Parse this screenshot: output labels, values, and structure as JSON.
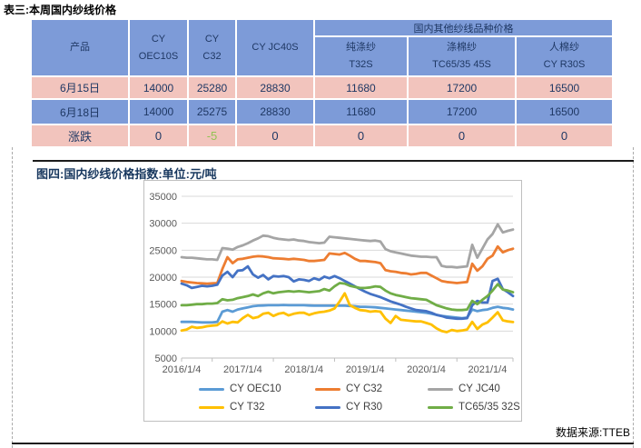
{
  "colors": {
    "table-blue": "#7d9bd8",
    "table-pink": "#f2c4bd",
    "table-text": "#1f3864",
    "change-green": "#92c353",
    "title-navy": "#17375e",
    "grid": "#d9d9d9",
    "axis-line": "#bfbfbf",
    "axis-text": "#595959"
  },
  "table_section": {
    "title": "表三:本周国内纱线价格",
    "header": {
      "product": "产品",
      "col_oec10s_l1": "CY",
      "col_oec10s_l2": "OEC10S",
      "col_c32_l1": "CY",
      "col_c32_l2": "C32",
      "col_jc40s": "CY JC40S",
      "group": "国内其他纱线品种价格",
      "sub_t32s_l1": "纯涤纱",
      "sub_t32s_l2": "T32S",
      "sub_tc_l1": "涤棉纱",
      "sub_tc_l2": "TC65/35 45S",
      "sub_r30s_l1": "人棉纱",
      "sub_r30s_l2": "CY R30S"
    },
    "rows": [
      {
        "label": "6月15日",
        "values": [
          "14000",
          "25280",
          "28830",
          "11680",
          "17200",
          "16500"
        ]
      },
      {
        "label": "6月18日",
        "values": [
          "14000",
          "25275",
          "28830",
          "11680",
          "17200",
          "16500"
        ]
      },
      {
        "label": "涨跌",
        "values": [
          "0",
          "-5",
          "0",
          "0",
          "0",
          "0"
        ]
      }
    ]
  },
  "figure_section": {
    "title": "图四:国内纱线价格指数:单位:元/吨",
    "source": "数据来源:TTEB"
  },
  "chart_data": {
    "type": "line",
    "title": "图四:国内纱线价格指数:单位:元/吨",
    "ylabel": "元/吨",
    "ylim": [
      5000,
      35000
    ],
    "yticks": [
      5000,
      10000,
      15000,
      20000,
      25000,
      30000,
      35000
    ],
    "xticks": [
      "2016/1/4",
      "2017/1/4",
      "2018/1/4",
      "2019/1/4",
      "2020/1/4",
      "2021/1/4"
    ],
    "x_start": "2016-01",
    "x_end": "2021-06",
    "x_interval": "monthly",
    "grid": "horizontal",
    "legend_position": "bottom",
    "series": [
      {
        "name": "CY OEC10",
        "color": "#5b9bd5",
        "values": [
          11700,
          11700,
          11700,
          11650,
          11600,
          11600,
          11600,
          11700,
          13600,
          13900,
          13600,
          14000,
          14200,
          14400,
          14600,
          14700,
          14750,
          14800,
          14800,
          14800,
          14850,
          14800,
          14800,
          14800,
          14800,
          14750,
          14700,
          14700,
          14700,
          14700,
          14700,
          14700,
          14700,
          14650,
          14600,
          14500,
          14500,
          14450,
          14400,
          14300,
          14200,
          14100,
          14000,
          13900,
          13800,
          13700,
          13600,
          13500,
          13400,
          13200,
          13000,
          12800,
          12700,
          12600,
          12500,
          12400,
          12500,
          14000,
          13700,
          13900,
          14000,
          14300,
          14500,
          14300,
          14200,
          14000
        ]
      },
      {
        "name": "CY C32",
        "color": "#ed7d31",
        "values": [
          19300,
          19100,
          19000,
          18900,
          18850,
          18800,
          18850,
          18900,
          21500,
          23700,
          22600,
          23300,
          23400,
          23600,
          23800,
          23900,
          23850,
          23700,
          23500,
          23450,
          23400,
          23300,
          23400,
          23300,
          23200,
          23000,
          23000,
          23100,
          23200,
          24400,
          24300,
          24200,
          24500,
          24000,
          23400,
          23000,
          23000,
          22900,
          22800,
          22600,
          21300,
          21100,
          21000,
          20800,
          20700,
          20500,
          20600,
          20800,
          20800,
          20300,
          19800,
          19300,
          19100,
          19000,
          18900,
          19000,
          19100,
          22500,
          21200,
          22000,
          23400,
          24000,
          25700,
          24600,
          25000,
          25275
        ]
      },
      {
        "name": "CY JC40",
        "color": "#a5a5a5",
        "values": [
          23700,
          23600,
          23600,
          23500,
          23400,
          23300,
          23300,
          23200,
          25400,
          25300,
          25100,
          25600,
          25900,
          26300,
          26800,
          27200,
          27700,
          27600,
          27300,
          27100,
          27000,
          26900,
          27000,
          26800,
          26700,
          26500,
          26400,
          26300,
          26400,
          27500,
          27400,
          27300,
          27200,
          27100,
          27000,
          26900,
          26800,
          26700,
          26800,
          26600,
          25200,
          24800,
          24600,
          24400,
          24200,
          24000,
          23900,
          23800,
          23800,
          23700,
          23700,
          22100,
          21900,
          21900,
          21800,
          21900,
          22000,
          26000,
          23600,
          25300,
          27000,
          28000,
          29800,
          28300,
          28600,
          28830
        ]
      },
      {
        "name": "CY T32",
        "color": "#ffc000",
        "values": [
          10100,
          10300,
          10800,
          10600,
          10700,
          10900,
          11000,
          11100,
          11800,
          11400,
          11700,
          11600,
          12400,
          13000,
          12400,
          12600,
          13200,
          13400,
          12800,
          13200,
          13400,
          12900,
          13200,
          13400,
          13400,
          13000,
          13300,
          13500,
          13600,
          13800,
          14200,
          15500,
          17000,
          14800,
          14300,
          13900,
          13800,
          13600,
          13700,
          13600,
          12300,
          11500,
          12800,
          12100,
          12000,
          11900,
          11800,
          11800,
          11500,
          11200,
          10500,
          10000,
          9800,
          10200,
          10000,
          10100,
          10300,
          11700,
          10400,
          11200,
          11600,
          12500,
          13500,
          12000,
          11800,
          11680
        ]
      },
      {
        "name": "CY R30",
        "color": "#4472c4",
        "values": [
          18800,
          18500,
          18000,
          18200,
          18400,
          18300,
          18400,
          18600,
          20300,
          21000,
          20000,
          21200,
          21300,
          22000,
          20500,
          19900,
          20400,
          19600,
          20200,
          20100,
          20200,
          20000,
          19200,
          19600,
          19500,
          19300,
          19800,
          19500,
          20100,
          19800,
          20200,
          19800,
          19300,
          18800,
          18300,
          17800,
          17300,
          16900,
          16600,
          16300,
          15900,
          15500,
          15200,
          14900,
          14500,
          14200,
          13900,
          13800,
          13700,
          13400,
          13000,
          12800,
          12500,
          12400,
          12300,
          12300,
          12400,
          14800,
          15600,
          15300,
          15300,
          19300,
          19700,
          17800,
          17200,
          16500
        ]
      },
      {
        "name": "TC65/35 32S",
        "color": "#70ad47",
        "values": [
          14800,
          14800,
          14900,
          15000,
          15000,
          15100,
          15100,
          15200,
          15900,
          15700,
          15800,
          16100,
          16300,
          16500,
          16800,
          16500,
          17000,
          17300,
          17000,
          17200,
          17300,
          17400,
          17300,
          17400,
          17300,
          17200,
          17300,
          17400,
          17800,
          17500,
          18300,
          18900,
          18800,
          18400,
          18200,
          18000,
          18000,
          18100,
          18300,
          18200,
          17500,
          17000,
          16700,
          16500,
          16300,
          16100,
          16000,
          15900,
          15800,
          15300,
          14800,
          14500,
          14200,
          14000,
          13900,
          13900,
          14000,
          15600,
          15000,
          15800,
          16500,
          17500,
          18700,
          17700,
          17500,
          17200
        ]
      }
    ]
  }
}
